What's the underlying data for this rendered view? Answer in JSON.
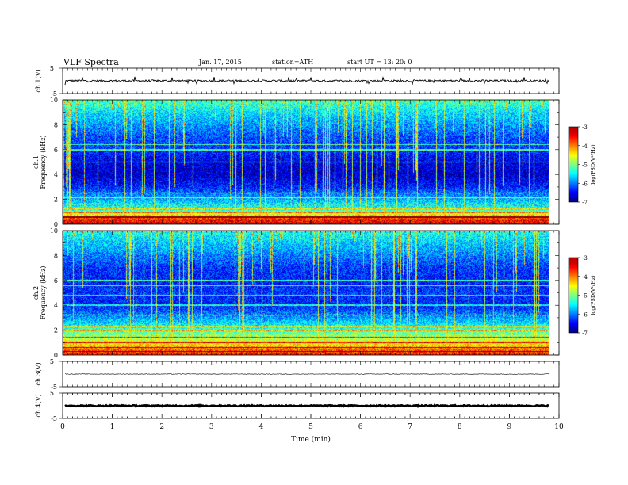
{
  "header": {
    "title": "VLF  Spectra",
    "date": "Jan. 17, 2015",
    "station": "station=ATH",
    "start": "start  UT  =   13: 20: 0"
  },
  "chart_data": {
    "type": "spectrogram",
    "x_axis": {
      "label": "Time  (min)",
      "range": [
        0,
        10
      ],
      "ticks": [
        "0",
        "1",
        "2",
        "3",
        "4",
        "5",
        "6",
        "7",
        "8",
        "9",
        "10"
      ],
      "data_end_min": 9.8
    },
    "panels": [
      {
        "id": "ch1",
        "type": "line",
        "ylabel": "ch.1(V)",
        "ylim": [
          -5,
          5
        ],
        "yticks": [
          "5",
          "-5"
        ],
        "baseline_V": 0,
        "noise_V": 0.4,
        "spikes_V": [
          {
            "t": 0.05,
            "v": -1.6
          },
          {
            "t": 0.4,
            "v": 1.2
          },
          {
            "t": 0.62,
            "v": -1.4
          },
          {
            "t": 1.45,
            "v": 1.6
          },
          {
            "t": 2.2,
            "v": 1.3
          },
          {
            "t": 2.7,
            "v": -1.2
          },
          {
            "t": 3.05,
            "v": 1.5
          },
          {
            "t": 3.45,
            "v": -1.1
          },
          {
            "t": 4.55,
            "v": 1.4
          },
          {
            "t": 5.0,
            "v": 1.2
          },
          {
            "t": 6.45,
            "v": 1.3
          },
          {
            "t": 7.05,
            "v": -1.5
          },
          {
            "t": 8.2,
            "v": 1.2
          },
          {
            "t": 8.5,
            "v": -1.0
          },
          {
            "t": 9.3,
            "v": 1.4
          }
        ]
      },
      {
        "id": "ch1-spectrum",
        "type": "heatmap",
        "ylabel": "ch.1\nFrequency  (kHz)",
        "ylabel_lines": [
          "ch.1",
          "Frequency  (kHz)"
        ],
        "ylim_kHz": [
          0,
          10
        ],
        "yticks": [
          "0",
          "2",
          "4",
          "6",
          "8",
          "10"
        ],
        "colorbar": {
          "label": "log(PSD(V²/Hz)",
          "range": [
            -7,
            -3
          ],
          "ticks": [
            "-3",
            "-4",
            "-5",
            "-6",
            "-7"
          ]
        },
        "mean_log_psd_profile": [
          {
            "f": 0.0,
            "v": -3.4
          },
          {
            "f": 0.3,
            "v": -3.6
          },
          {
            "f": 0.6,
            "v": -4.0
          },
          {
            "f": 1.0,
            "v": -5.2
          },
          {
            "f": 1.6,
            "v": -5.6
          },
          {
            "f": 2.2,
            "v": -5.9
          },
          {
            "f": 3.0,
            "v": -6.4
          },
          {
            "f": 4.0,
            "v": -6.7
          },
          {
            "f": 5.0,
            "v": -6.6
          },
          {
            "f": 6.0,
            "v": -6.3
          },
          {
            "f": 7.0,
            "v": -6.2
          },
          {
            "f": 8.0,
            "v": -5.9
          },
          {
            "f": 9.0,
            "v": -5.6
          },
          {
            "f": 10.0,
            "v": -5.2
          }
        ],
        "horizontal_lines_kHz": [
          0.3,
          0.55,
          0.9,
          1.25,
          1.6,
          2.1,
          2.5,
          5.0,
          6.0,
          6.4
        ]
      },
      {
        "id": "ch2-spectrum",
        "type": "heatmap",
        "ylabel": "ch.2\nFrequency  (kHz)",
        "ylabel_lines": [
          "ch.2",
          "Frequency  (kHz)"
        ],
        "ylim_kHz": [
          0,
          10
        ],
        "yticks": [
          "0",
          "2",
          "4",
          "6",
          "8",
          "10"
        ],
        "colorbar": {
          "label": "log(PSD(V²/Hz)",
          "range": [
            -7,
            -3
          ],
          "ticks": [
            "-3",
            "-4",
            "-5",
            "-6",
            "-7"
          ]
        },
        "mean_log_psd_profile": [
          {
            "f": 0.0,
            "v": -3.6
          },
          {
            "f": 0.4,
            "v": -3.9
          },
          {
            "f": 0.8,
            "v": -4.4
          },
          {
            "f": 1.2,
            "v": -4.7
          },
          {
            "f": 1.8,
            "v": -5.1
          },
          {
            "f": 2.5,
            "v": -5.6
          },
          {
            "f": 3.2,
            "v": -6.0
          },
          {
            "f": 4.0,
            "v": -6.4
          },
          {
            "f": 5.0,
            "v": -6.3
          },
          {
            "f": 6.0,
            "v": -6.4
          },
          {
            "f": 7.0,
            "v": -6.3
          },
          {
            "f": 8.0,
            "v": -6.0
          },
          {
            "f": 9.0,
            "v": -5.7
          },
          {
            "f": 10.0,
            "v": -5.4
          }
        ],
        "horizontal_lines_kHz": [
          0.25,
          0.6,
          1.0,
          1.4,
          1.9,
          2.3,
          3.2,
          4.0,
          4.8,
          5.6,
          6.0
        ]
      },
      {
        "id": "ch3",
        "type": "line",
        "ylabel": "ch.3(V)",
        "ylim": [
          -5,
          5
        ],
        "yticks": [
          "5",
          "-5"
        ],
        "baseline_V": 0,
        "noise_V": 0.12
      },
      {
        "id": "ch4",
        "type": "line",
        "ylabel": "ch.4(V)",
        "ylim": [
          -5,
          5
        ],
        "yticks": [
          "5",
          "-5"
        ],
        "baseline_V": 0,
        "noise_V": 0.25
      }
    ]
  }
}
